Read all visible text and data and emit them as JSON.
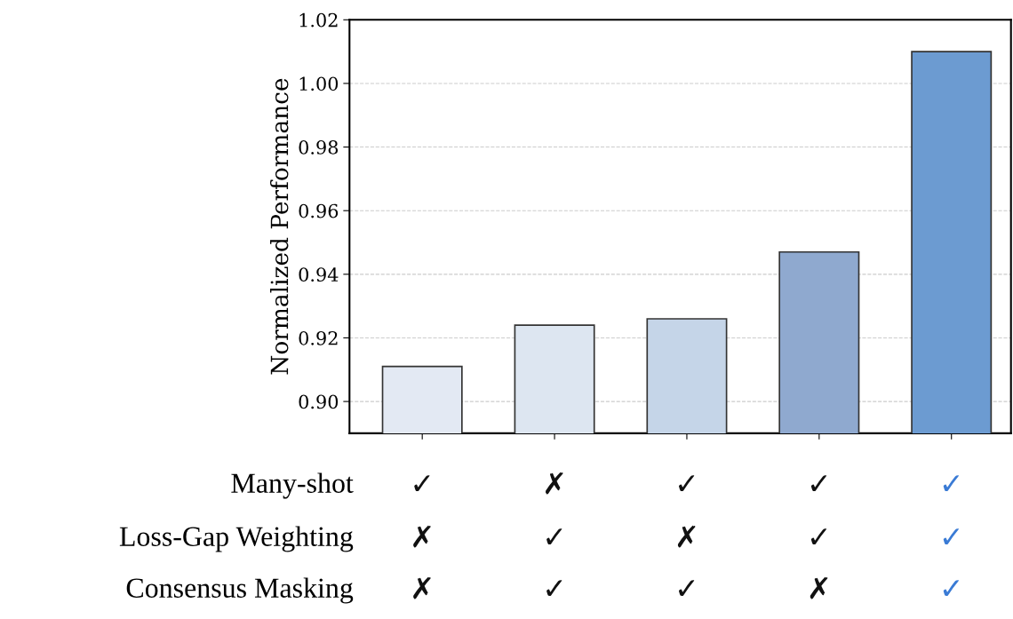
{
  "chart_data": {
    "type": "bar",
    "ylabel": "Normalized Performance",
    "categories": [
      null,
      null,
      null,
      null,
      null
    ],
    "values": [
      0.911,
      0.924,
      0.926,
      0.947,
      1.01
    ],
    "colors": [
      "#e3e9f3",
      "#dde6f1",
      "#c5d5e8",
      "#8fa9cf",
      "#6c9bd1"
    ],
    "ylim": [
      0.89,
      1.02
    ],
    "yticks": [
      {
        "value": 0.9,
        "label": "0.90"
      },
      0.92,
      0.94,
      0.96,
      0.98,
      {
        "value": 1.0,
        "label": "1.00"
      },
      1.02
    ],
    "grid": "y",
    "annotations": [
      "Many-shot",
      "✓",
      "✗",
      "✓",
      "✓",
      "✓",
      "Loss-Gap Weighting",
      "✗",
      "✓",
      "✗",
      "✓",
      "✓",
      "Consensus Masking",
      "✗",
      "✓",
      "✓",
      "✗",
      "✓"
    ]
  }
}
